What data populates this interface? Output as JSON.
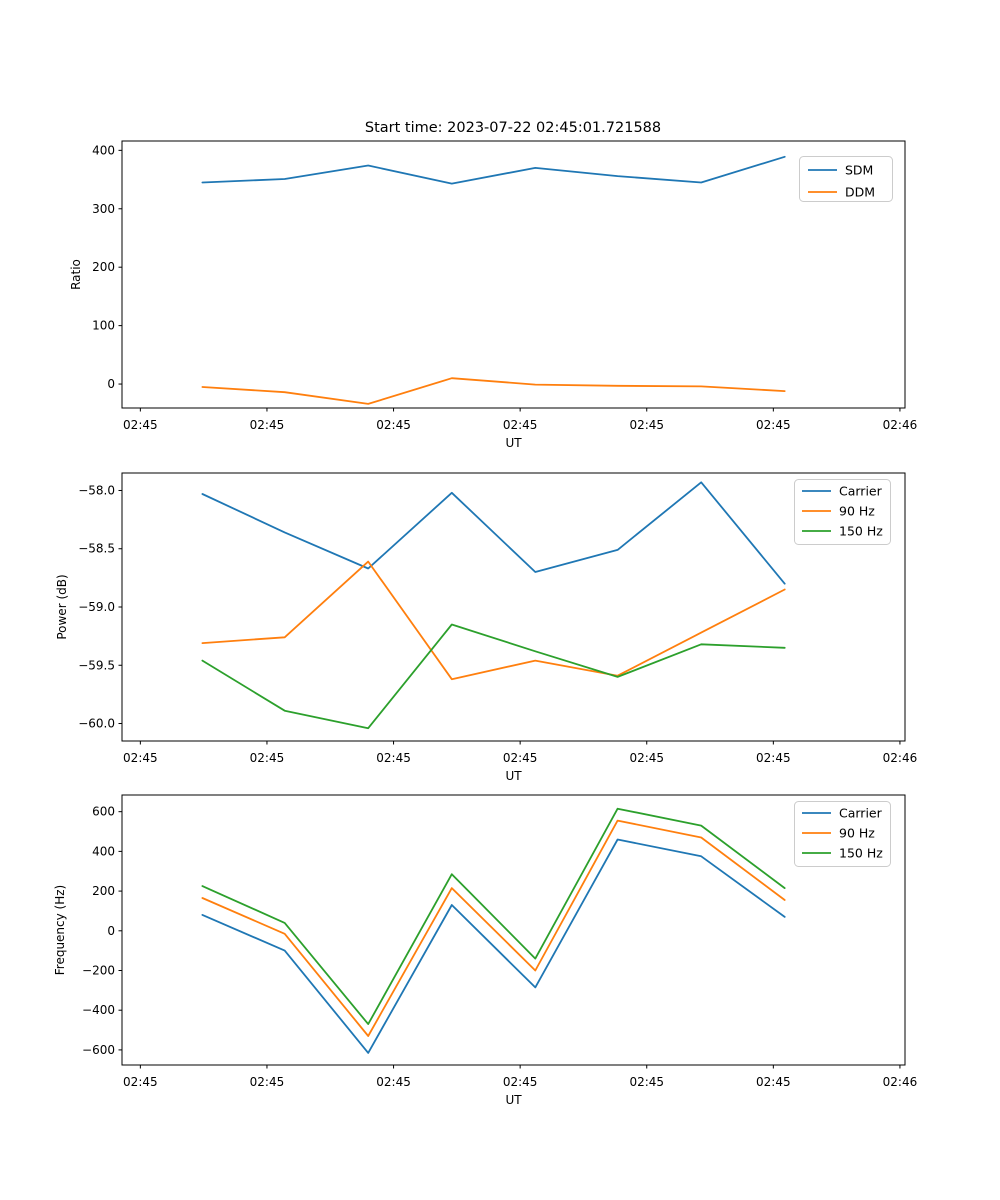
{
  "figure": {
    "title": "Start time: 2023-07-22 02:45:01.721588",
    "background": "#ffffff"
  },
  "chart_data": [
    {
      "type": "line",
      "title": "Start time: 2023-07-22 02:45:01.721588",
      "xlabel": "UT",
      "ylabel": "Ratio",
      "grid": false,
      "x_seconds_after_024500": [
        4.9,
        11.4,
        18.0,
        24.6,
        31.2,
        37.7,
        44.3,
        50.9
      ],
      "xlim_seconds": [
        -1.45,
        60.4
      ],
      "ylim": [
        -41,
        416
      ],
      "xticks": {
        "seconds": [
          0,
          10,
          20,
          30,
          40,
          50,
          60
        ],
        "labels": [
          "02:45",
          "02:45",
          "02:45",
          "02:45",
          "02:45",
          "02:45",
          "02:46"
        ]
      },
      "yticks": {
        "values": [
          0,
          100,
          200,
          300,
          400
        ],
        "labels": [
          "0",
          "100",
          "200",
          "300",
          "400"
        ]
      },
      "legend": {
        "position": "upper right",
        "entries": [
          "SDM",
          "DDM"
        ]
      },
      "series": [
        {
          "name": "SDM",
          "color": "#1f77b4",
          "values": [
            345,
            351,
            374,
            343,
            370,
            356,
            345,
            389
          ]
        },
        {
          "name": "DDM",
          "color": "#ff7f0e",
          "values": [
            -5,
            -14,
            -34,
            10,
            -1,
            -3,
            -4,
            -12
          ]
        }
      ]
    },
    {
      "type": "line",
      "title": "",
      "xlabel": "UT",
      "ylabel": "Power (dB)",
      "grid": false,
      "x_seconds_after_024500": [
        4.9,
        11.4,
        18.0,
        24.6,
        31.2,
        37.7,
        44.3,
        50.9
      ],
      "xlim_seconds": [
        -1.45,
        60.4
      ],
      "ylim": [
        -60.15,
        -57.85
      ],
      "xticks": {
        "seconds": [
          0,
          10,
          20,
          30,
          40,
          50,
          60
        ],
        "labels": [
          "02:45",
          "02:45",
          "02:45",
          "02:45",
          "02:45",
          "02:45",
          "02:46"
        ]
      },
      "yticks": {
        "values": [
          -60.0,
          -59.5,
          -59.0,
          -58.5,
          -58.0
        ],
        "labels": [
          "−60.0",
          "−59.5",
          "−59.0",
          "−58.5",
          "−58.0"
        ]
      },
      "legend": {
        "position": "upper right",
        "entries": [
          "Carrier",
          "90 Hz",
          "150 Hz"
        ]
      },
      "series": [
        {
          "name": "Carrier",
          "color": "#1f77b4",
          "values": [
            -58.03,
            -58.36,
            -58.67,
            -58.02,
            -58.7,
            -58.51,
            -57.93,
            -58.8
          ]
        },
        {
          "name": "90 Hz",
          "color": "#ff7f0e",
          "values": [
            -59.31,
            -59.26,
            -58.61,
            -59.62,
            -59.46,
            -59.59,
            -59.22,
            -58.85
          ]
        },
        {
          "name": "150 Hz",
          "color": "#2ca02c",
          "values": [
            -59.46,
            -59.89,
            -60.04,
            -59.15,
            -59.38,
            -59.6,
            -59.32,
            -59.35
          ]
        }
      ]
    },
    {
      "type": "line",
      "title": "",
      "xlabel": "UT",
      "ylabel": "Frequency (Hz)",
      "grid": false,
      "x_seconds_after_024500": [
        4.9,
        11.4,
        18.0,
        24.6,
        31.2,
        37.7,
        44.3,
        50.9
      ],
      "xlim_seconds": [
        -1.45,
        60.4
      ],
      "ylim": [
        -676,
        684
      ],
      "xticks": {
        "seconds": [
          0,
          10,
          20,
          30,
          40,
          50,
          60
        ],
        "labels": [
          "02:45",
          "02:45",
          "02:45",
          "02:45",
          "02:45",
          "02:45",
          "02:46"
        ]
      },
      "yticks": {
        "values": [
          -600,
          -400,
          -200,
          0,
          200,
          400,
          600
        ],
        "labels": [
          "−600",
          "−400",
          "−200",
          "0",
          "200",
          "400",
          "600"
        ]
      },
      "legend": {
        "position": "upper right",
        "entries": [
          "Carrier",
          "90 Hz",
          "150 Hz"
        ]
      },
      "series": [
        {
          "name": "Carrier",
          "color": "#1f77b4",
          "values": [
            80,
            -100,
            -615,
            130,
            -285,
            460,
            375,
            70
          ]
        },
        {
          "name": "90 Hz",
          "color": "#ff7f0e",
          "values": [
            165,
            -15,
            -530,
            215,
            -200,
            555,
            470,
            155
          ]
        },
        {
          "name": "150 Hz",
          "color": "#2ca02c",
          "values": [
            225,
            40,
            -470,
            285,
            -140,
            615,
            530,
            215
          ]
        }
      ]
    }
  ]
}
